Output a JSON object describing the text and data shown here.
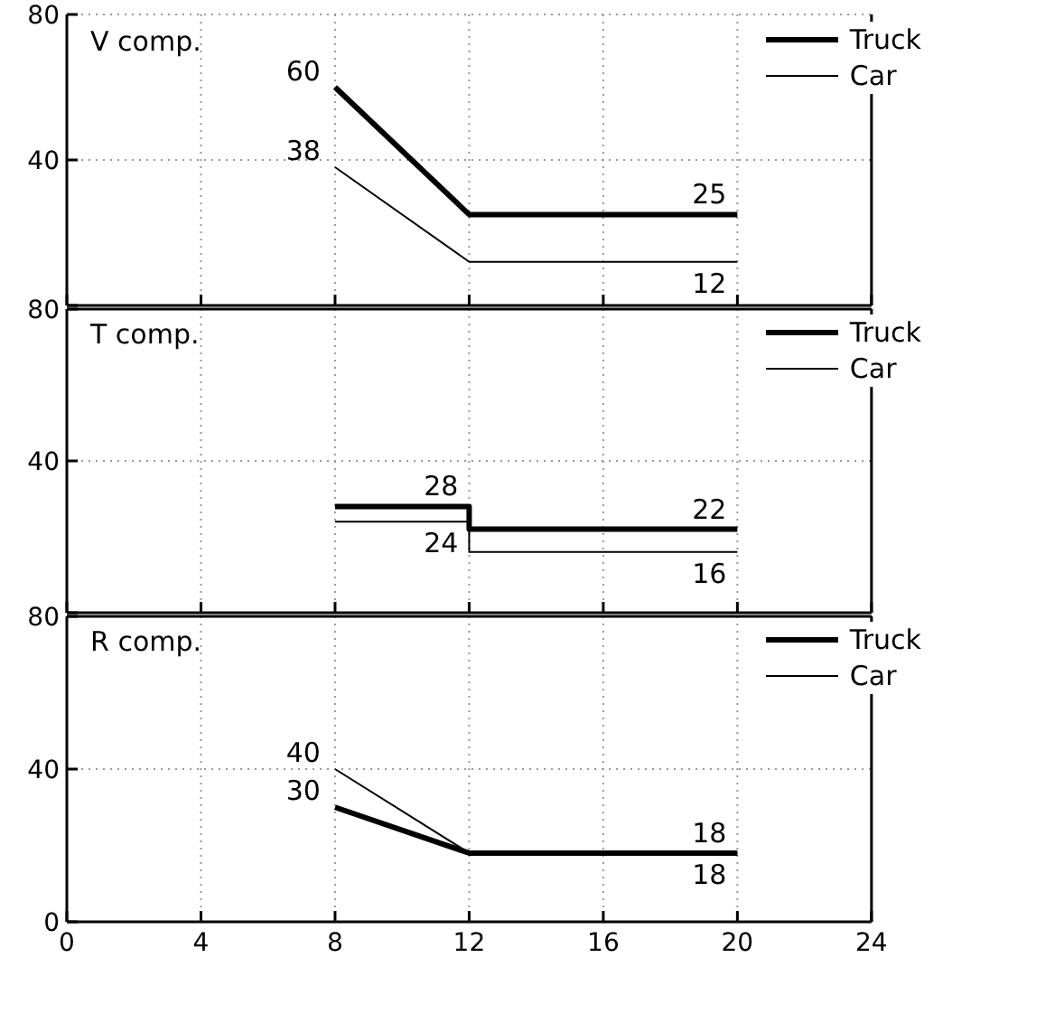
{
  "chart_data": [
    {
      "type": "line",
      "title": "V comp.",
      "xlim": [
        0,
        24
      ],
      "xticks": [
        0,
        4,
        8,
        12,
        16,
        20,
        24
      ],
      "ylim": [
        0,
        80
      ],
      "yticks": [
        {
          "value": 0,
          "label": null
        },
        40,
        80
      ],
      "grid": true,
      "legend": "top right",
      "tick_labels": "y",
      "marker": "none",
      "line_style": "solid",
      "series": [
        {
          "name": "Truck",
          "color": "#000000",
          "x": [
            8,
            12,
            20
          ],
          "values": [
            60,
            25,
            25
          ],
          "value_labels": [
            "60",
            null,
            "25"
          ]
        },
        {
          "name": "Car",
          "color": "#000000",
          "x": [
            8,
            12,
            20
          ],
          "values": [
            38,
            12,
            12
          ],
          "value_labels": [
            "38",
            null,
            "12"
          ]
        }
      ]
    },
    {
      "type": "line",
      "title": "T comp.",
      "xlim": [
        0,
        24
      ],
      "xticks": [
        0,
        4,
        8,
        12,
        16,
        20,
        24
      ],
      "ylim": [
        0,
        80
      ],
      "yticks": [
        {
          "value": 0,
          "label": null
        },
        40,
        80
      ],
      "grid": true,
      "legend": "top right",
      "tick_labels": "y",
      "marker": "none",
      "line_style": "solid",
      "series": [
        {
          "name": "Truck",
          "color": "#000000",
          "x": [
            8,
            12,
            12,
            20
          ],
          "values": [
            28,
            28,
            22,
            22
          ],
          "value_labels": [
            null,
            "28",
            null,
            "22"
          ]
        },
        {
          "name": "Car",
          "color": "#000000",
          "x": [
            8,
            12,
            12,
            20
          ],
          "values": [
            24,
            24,
            16,
            16
          ],
          "value_labels": [
            null,
            "24",
            null,
            "16"
          ]
        }
      ]
    },
    {
      "type": "line",
      "title": "R comp.",
      "xlim": [
        0,
        24
      ],
      "xticks": [
        0,
        4,
        8,
        12,
        16,
        20,
        24
      ],
      "ylim": [
        0,
        80
      ],
      "yticks": [
        0,
        40,
        80
      ],
      "grid": true,
      "legend": "top right",
      "marker": "none",
      "line_style": "solid",
      "series": [
        {
          "name": "Truck",
          "color": "#000000",
          "x": [
            8,
            12,
            20
          ],
          "values": [
            30,
            18,
            18
          ],
          "value_labels": [
            "30",
            null,
            "18"
          ]
        },
        {
          "name": "Car",
          "color": "#000000",
          "x": [
            8,
            12,
            20
          ],
          "values": [
            40,
            18,
            18
          ],
          "value_labels": [
            "40",
            null,
            "18"
          ]
        }
      ]
    }
  ]
}
